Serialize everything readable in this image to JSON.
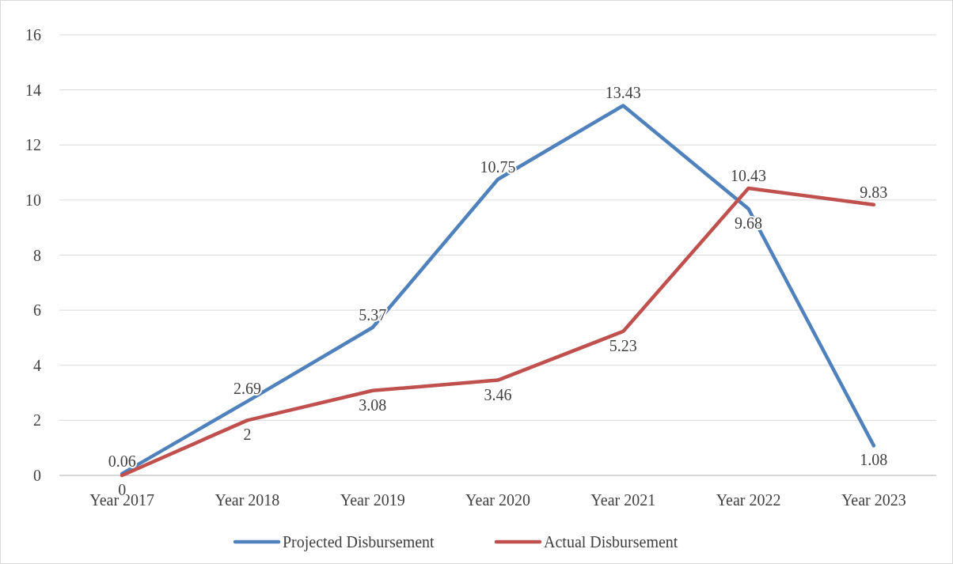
{
  "chart_data": {
    "type": "line",
    "categories": [
      "Year 2017",
      "Year 2018",
      "Year 2019",
      "Year 2020",
      "Year 2021",
      "Year 2022",
      "Year 2023"
    ],
    "series": [
      {
        "name": "Projected Disbursement",
        "color": "#4f81bd",
        "values": [
          0.06,
          2.69,
          5.37,
          10.75,
          13.43,
          9.68,
          1.08
        ]
      },
      {
        "name": "Actual Disbursement",
        "color": "#c0504d",
        "values": [
          0,
          2,
          3.08,
          3.46,
          5.23,
          10.43,
          9.83
        ]
      }
    ],
    "ylim": [
      0,
      16
    ],
    "yticks": [
      0,
      2,
      4,
      6,
      8,
      10,
      12,
      14,
      16
    ],
    "grid": "y",
    "legend": "bottom",
    "data_labels": true,
    "marker": "none",
    "line_style": "solid"
  }
}
